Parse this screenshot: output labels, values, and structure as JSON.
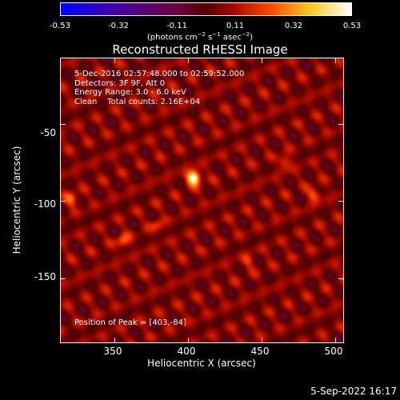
{
  "chart_data": {
    "type": "heatmap",
    "title": "Reconstructed RHESSI Image",
    "xlabel": "Heliocentric X (arcsec)",
    "ylabel": "Heliocentric Y (arcsec)",
    "xlim": [
      313,
      506
    ],
    "ylim": [
      -192,
      -7
    ],
    "xticks": [
      350,
      400,
      450,
      500
    ],
    "yticks": [
      -50,
      -100,
      -150
    ],
    "colorbar": {
      "ticks": [
        "-0.53",
        "-0.32",
        "-0.11",
        "0.11",
        "0.32",
        "0.53"
      ],
      "range": [
        -0.53,
        0.53
      ],
      "unit_parts": {
        "prefix": "(photons cm",
        "exp1": "−2",
        "mid1": " s",
        "exp2": "−1",
        "mid2": " asec",
        "exp3": "−2",
        "suffix": ")"
      },
      "colormap": "rainbow-style: blue-purple-red-orange-yellow-white"
    },
    "annotations": {
      "time": "5-Dec-2016 02:57:48.000 to 02:59:52.000",
      "detectors": "Detectors: 3F 9F, Att 0",
      "energy": "Energy Range: 3.0 - 6.0 keV",
      "clean": "Clean    Total counts: 2.16E+04",
      "peak": "Position of Peak = [403,-84]"
    },
    "peak": {
      "x": 403,
      "y": -84,
      "value": 0.53
    },
    "secondary_sources": [
      {
        "x": 320,
        "y": -98,
        "value": 0.2
      },
      {
        "x": 355,
        "y": -125,
        "value": 0.2
      },
      {
        "x": 465,
        "y": -74,
        "value": 0.18
      },
      {
        "x": 485,
        "y": -95,
        "value": 0.2
      },
      {
        "x": 378,
        "y": -115,
        "value": 0.14
      },
      {
        "x": 440,
        "y": -138,
        "value": 0.12
      }
    ]
  },
  "footer": {
    "date": "5-Sep-2022 16:17"
  }
}
